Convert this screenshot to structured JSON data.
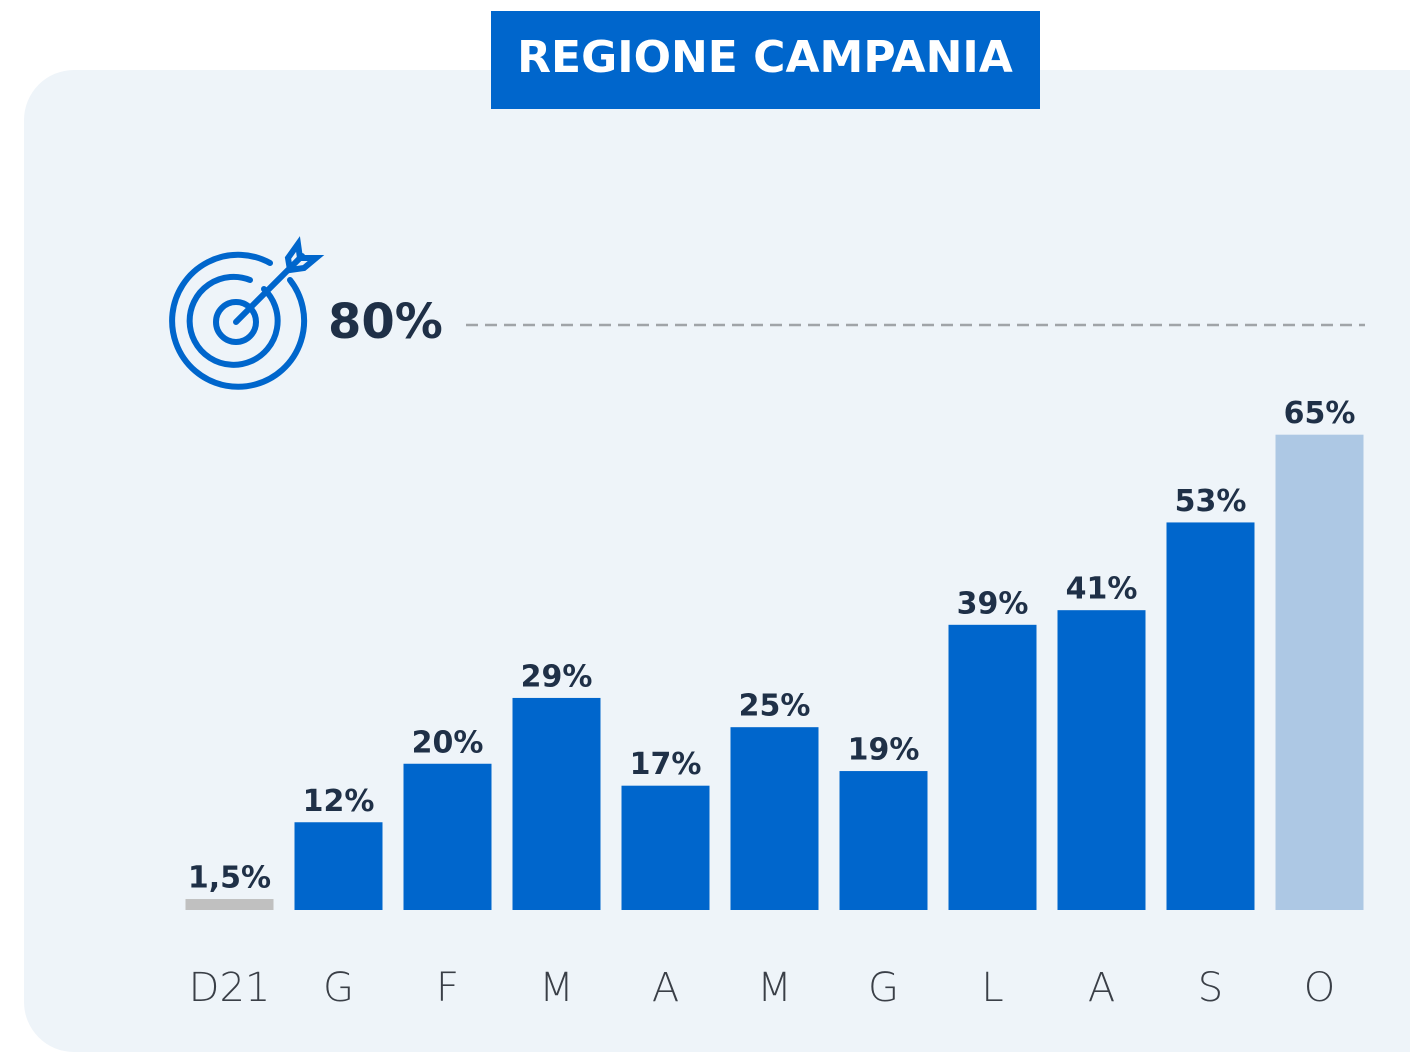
{
  "chart_data": {
    "type": "bar",
    "title": "REGIONE CAMPANIA",
    "categories": [
      "D21",
      "G",
      "F",
      "M",
      "A",
      "M",
      "G",
      "L",
      "A",
      "S",
      "O"
    ],
    "values": [
      1.5,
      12,
      20,
      29,
      17,
      25,
      19,
      39,
      41,
      53,
      65
    ],
    "value_labels": [
      "1,5%",
      "12%",
      "20%",
      "29%",
      "17%",
      "25%",
      "19%",
      "39%",
      "41%",
      "53%",
      "65%"
    ],
    "colors": [
      "#c0c0c0",
      "#0066cc",
      "#0066cc",
      "#0066cc",
      "#0066cc",
      "#0066cc",
      "#0066cc",
      "#0066cc",
      "#0066cc",
      "#0066cc",
      "#adc8e4"
    ],
    "target": {
      "value": 80,
      "label": "80%"
    }
  }
}
